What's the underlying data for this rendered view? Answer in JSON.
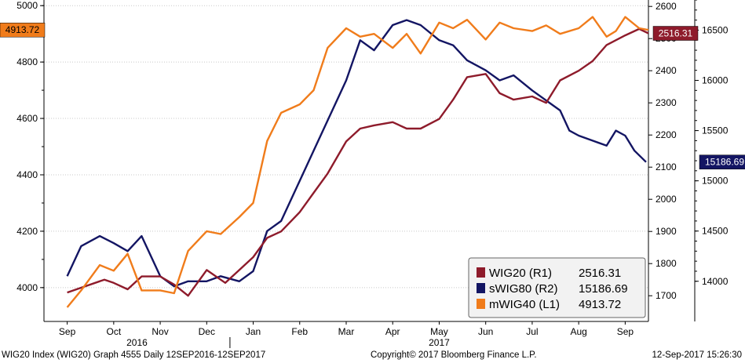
{
  "footer": {
    "left": "WIG20 Index (WIG20) Graph 4555  Daily 12SEP2016-12SEP2017",
    "center": "Copyright© 2017 Bloomberg Finance L.P.",
    "right": "12-Sep-2017 15:26:30"
  },
  "chart_data": {
    "type": "line",
    "title": "",
    "months": [
      "Sep",
      "Oct",
      "Nov",
      "Dec",
      "Jan",
      "Feb",
      "Mar",
      "Apr",
      "May",
      "Jun",
      "Jul",
      "Aug",
      "Sep"
    ],
    "years": [
      "2016",
      "2017"
    ],
    "y_left": {
      "min": 3880,
      "max": 5020,
      "ticks": [
        4000,
        4200,
        4400,
        4600,
        4800,
        5000
      ]
    },
    "y_r1": {
      "min": 1620,
      "max": 2620,
      "ticks": [
        1700,
        1800,
        1900,
        2000,
        2100,
        2200,
        2300,
        2400,
        2500,
        2600
      ]
    },
    "y_r2": {
      "min": 13600,
      "max": 16800,
      "ticks": [
        14000,
        14500,
        15000,
        15500,
        16000,
        16500
      ]
    },
    "legend": [
      {
        "label": "WIG20 (R1)",
        "value": "2516.31",
        "color": "#8e1b2b"
      },
      {
        "label": "sWIG80 (R2)",
        "value": "15186.69",
        "color": "#131563"
      },
      {
        "label": "mWIG40 (L1)",
        "value": "4913.72",
        "color": "#f07c1b"
      }
    ],
    "last_labels": {
      "mwig40": "4913.72",
      "wig20": "2516.31",
      "swig80": "15186.69"
    },
    "series": [
      {
        "name": "WIG20 (R1)",
        "axis": "r1",
        "color": "#8e1b2b",
        "x": [
          0,
          0.8,
          1,
          1.3,
          1.6,
          2,
          2.3,
          2.6,
          3,
          3.4,
          3.7,
          4,
          4.3,
          4.6,
          5,
          5.3,
          5.6,
          6,
          6.3,
          6.6,
          7,
          7.3,
          7.6,
          8,
          8.3,
          8.6,
          9,
          9.3,
          9.6,
          10,
          10.3,
          10.6,
          11,
          11.3,
          11.6,
          12,
          12.3,
          12.5
        ],
        "y": [
          1710,
          1750,
          1740,
          1720,
          1760,
          1760,
          1735,
          1700,
          1780,
          1740,
          1780,
          1820,
          1880,
          1900,
          1960,
          2020,
          2080,
          2180,
          2220,
          2230,
          2240,
          2220,
          2220,
          2250,
          2310,
          2380,
          2390,
          2330,
          2310,
          2320,
          2300,
          2370,
          2400,
          2430,
          2480,
          2510,
          2530,
          2516.31
        ]
      },
      {
        "name": "sWIG80 (R2)",
        "axis": "r2",
        "color": "#131563",
        "x": [
          0,
          0.3,
          0.7,
          1,
          1.3,
          1.6,
          2,
          2.3,
          2.6,
          2.8,
          3,
          3.3,
          3.7,
          4,
          4.3,
          4.6,
          5,
          5.3,
          5.6,
          6,
          6.3,
          6.6,
          7,
          7.3,
          7.6,
          8,
          8.3,
          8.6,
          9,
          9.3,
          9.6,
          10,
          10.3,
          10.6,
          10.8,
          11,
          11.3,
          11.6,
          11.8,
          12,
          12.2,
          12.45
        ],
        "y": [
          14050,
          14350,
          14450,
          14380,
          14300,
          14450,
          14050,
          13950,
          14000,
          14000,
          14000,
          14050,
          14000,
          14100,
          14500,
          14600,
          15000,
          15300,
          15600,
          16000,
          16400,
          16300,
          16550,
          16600,
          16550,
          16400,
          16350,
          16200,
          16100,
          16000,
          16050,
          15900,
          15800,
          15700,
          15500,
          15450,
          15400,
          15350,
          15500,
          15450,
          15300,
          15186.69
        ]
      },
      {
        "name": "mWIG40 (L1)",
        "axis": "l1",
        "color": "#f07c1b",
        "x": [
          0,
          0.3,
          0.7,
          1,
          1.3,
          1.6,
          2,
          2.3,
          2.6,
          3,
          3.3,
          3.7,
          4,
          4.3,
          4.6,
          5,
          5.3,
          5.6,
          6,
          6.3,
          6.6,
          7,
          7.3,
          7.6,
          8,
          8.3,
          8.6,
          9,
          9.3,
          9.6,
          10,
          10.3,
          10.6,
          11,
          11.3,
          11.6,
          11.8,
          12,
          12.3,
          12.5
        ],
        "y": [
          3930,
          3990,
          4080,
          4060,
          4120,
          3990,
          3990,
          3980,
          4130,
          4200,
          4190,
          4250,
          4300,
          4520,
          4620,
          4650,
          4700,
          4850,
          4920,
          4890,
          4900,
          4850,
          4900,
          4830,
          4940,
          4920,
          4950,
          4880,
          4940,
          4920,
          4910,
          4930,
          4900,
          4920,
          4960,
          4890,
          4910,
          4960,
          4920,
          4913.72
        ]
      }
    ]
  }
}
